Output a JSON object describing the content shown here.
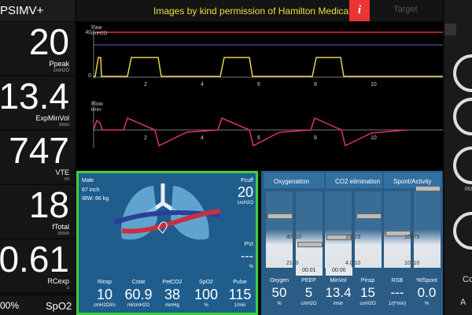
{
  "mode": "PSIMV+",
  "banner": {
    "text": "Images by kind permission of Hamilton Medical",
    "info": "i",
    "target": "Target"
  },
  "monitors": [
    {
      "value": "20",
      "name": "Ppeak",
      "unit": "cmH2O"
    },
    {
      "value": "13.4",
      "name": "ExpMinVol",
      "unit": "l/min"
    },
    {
      "value": "747",
      "name": "VTE",
      "unit": "ml"
    },
    {
      "value": "18",
      "name": "fTotal",
      "unit": "b/min"
    },
    {
      "value": "0.61",
      "name": "RCexp",
      "unit": "s"
    }
  ],
  "bottom_left": {
    "value": "00%",
    "name": "SpO2"
  },
  "waveforms": [
    {
      "name": "Paw",
      "unit": "cmH2O",
      "yticks": [
        "40",
        "0"
      ],
      "xticks": [
        "2",
        "4",
        "6",
        "8",
        "10"
      ]
    },
    {
      "name": "Flow",
      "unit": "l/min",
      "xticks": [
        "2",
        "4",
        "6",
        "8",
        "10"
      ]
    }
  ],
  "patient": {
    "sex": "Male",
    "height": "67  inch",
    "ibw": "IBW:  66 kg",
    "pcuff": {
      "name": "Pcuff",
      "value": "20",
      "unit": "cmH2O"
    },
    "pvi": {
      "name": "PVI",
      "value": "---",
      "unit": "%"
    },
    "params": [
      {
        "name": "Rinsp",
        "value": "10",
        "unit": "cmH2O/l/s"
      },
      {
        "name": "Cstat",
        "value": "60.9",
        "unit": "ml/cmH2O"
      },
      {
        "name": "PetCO2",
        "value": "38",
        "unit": "mmHg"
      },
      {
        "name": "SpO2",
        "value": "100",
        "unit": "%"
      },
      {
        "name": "Pulse",
        "value": "115",
        "unit": "1/min"
      }
    ]
  },
  "controls": {
    "groups": [
      "Oxygenation",
      "CO2 elimination",
      "Spont/Activity"
    ],
    "timers": [
      "00:01",
      "00:00"
    ],
    "items": [
      {
        "name": "Oxygen",
        "value": "50",
        "unit": "%",
        "scale": [
          "40",
          "21"
        ]
      },
      {
        "name": "PEEP",
        "value": "5",
        "unit": "cmH2O",
        "scale": [
          "10",
          "0"
        ]
      },
      {
        "name": "MinVol",
        "value": "13.4",
        "unit": "l/min",
        "scale": [
          "10",
          "4.0"
        ]
      },
      {
        "name": "Pinsp",
        "value": "15",
        "unit": "cmH2O",
        "scale": [
          "15",
          "10"
        ]
      },
      {
        "name": "RSB",
        "value": "---",
        "unit": "1/(l*min)",
        "scale": [
          "100",
          "10"
        ]
      },
      {
        "name": "%fSpont",
        "value": "0.0",
        "unit": "%",
        "scale": [
          "75",
          "10"
        ]
      }
    ]
  },
  "side": [
    "PEE",
    "Co",
    "A"
  ]
}
